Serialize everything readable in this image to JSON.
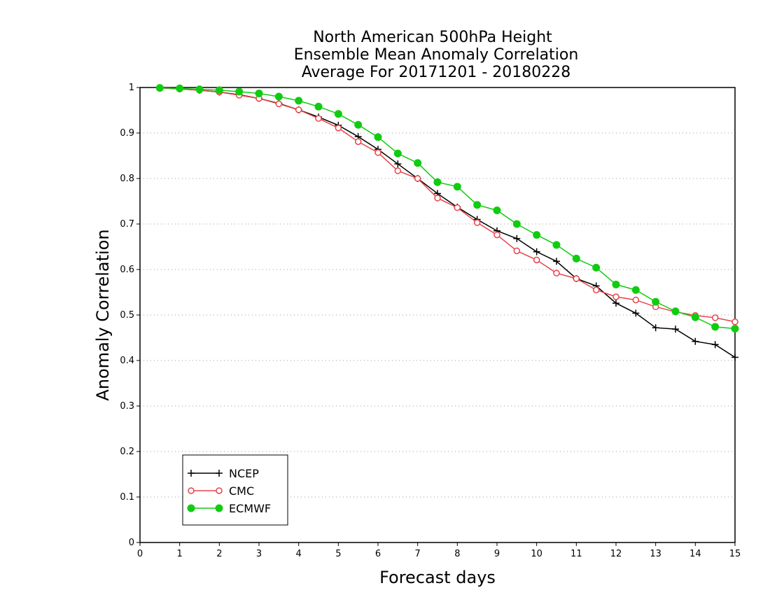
{
  "chart_data": {
    "type": "line",
    "title": [
      "North American 500hPa Height",
      "Ensemble Mean Anomaly Correlation",
      "Average For 20171201 - 20180228"
    ],
    "xlabel": "Forecast days",
    "ylabel": "Anomaly Correlation",
    "xlim": [
      0,
      15
    ],
    "ylim": [
      0,
      1
    ],
    "xticks": [
      "0",
      "1",
      "2",
      "3",
      "4",
      "5",
      "6",
      "7",
      "8",
      "9",
      "10",
      "11",
      "12",
      "13",
      "14",
      "15"
    ],
    "yticks": [
      "0",
      "0.1",
      "0.2",
      "0.3",
      "0.4",
      "0.5",
      "0.6",
      "0.7",
      "0.8",
      "0.9",
      "1"
    ],
    "grid": "horizontal dotted",
    "legend_position": "bottom-left",
    "x": [
      0.5,
      1,
      1.5,
      2,
      2.5,
      3,
      3.5,
      4,
      4.5,
      5,
      5.5,
      6,
      6.5,
      7,
      7.5,
      8,
      8.5,
      9,
      9.5,
      10,
      10.5,
      11,
      11.5,
      12,
      12.5,
      13,
      13.5,
      14,
      14.5,
      15
    ],
    "series": [
      {
        "name": "NCEP",
        "color": "#000000",
        "marker": "plus",
        "values": [
          0.999,
          0.997,
          0.994,
          0.99,
          0.984,
          0.976,
          0.965,
          0.951,
          0.935,
          0.917,
          0.892,
          0.864,
          0.832,
          0.8,
          0.767,
          0.737,
          0.71,
          0.685,
          0.668,
          0.639,
          0.618,
          0.58,
          0.564,
          0.526,
          0.504,
          0.472,
          0.469,
          0.442,
          0.435,
          0.407
        ]
      },
      {
        "name": "CMC",
        "color": "#e8434a",
        "marker": "open-circle",
        "values": [
          0.999,
          0.997,
          0.994,
          0.99,
          0.983,
          0.976,
          0.964,
          0.951,
          0.932,
          0.911,
          0.881,
          0.857,
          0.817,
          0.8,
          0.757,
          0.736,
          0.703,
          0.676,
          0.641,
          0.621,
          0.592,
          0.58,
          0.555,
          0.54,
          0.533,
          0.518,
          0.507,
          0.499,
          0.494,
          0.485
        ]
      },
      {
        "name": "ECMWF",
        "color": "#10cc10",
        "marker": "filled-circle",
        "values": [
          0.999,
          0.998,
          0.996,
          0.994,
          0.991,
          0.987,
          0.98,
          0.971,
          0.958,
          0.942,
          0.918,
          0.891,
          0.855,
          0.834,
          0.792,
          0.782,
          0.742,
          0.73,
          0.7,
          0.676,
          0.654,
          0.624,
          0.604,
          0.567,
          0.555,
          0.529,
          0.508,
          0.495,
          0.474,
          0.47
        ]
      }
    ]
  }
}
